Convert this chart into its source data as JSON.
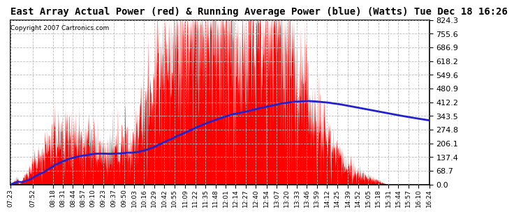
{
  "title": "East Array Actual Power (red) & Running Average Power (blue) (Watts) Tue Dec 18 16:26",
  "copyright": "Copyright 2007 Cartronics.com",
  "ylim": [
    0.0,
    824.3
  ],
  "yticks": [
    0.0,
    68.7,
    137.4,
    206.1,
    274.8,
    343.5,
    412.2,
    480.9,
    549.6,
    618.2,
    686.9,
    755.6,
    824.3
  ],
  "bar_color": "#FF0000",
  "avg_color": "#2222CC",
  "bg_color": "#FFFFFF",
  "plot_bg_color": "#FFFFFF",
  "grid_color": "#BBBBBB",
  "title_fontsize": 10,
  "x_tick_fontsize": 6.5,
  "y_tick_fontsize": 8,
  "tick_labels": [
    "07:23",
    "07:52",
    "08:18",
    "08:31",
    "08:44",
    "08:57",
    "09:10",
    "09:23",
    "09:37",
    "09:50",
    "10:03",
    "10:16",
    "10:29",
    "10:42",
    "10:55",
    "11:09",
    "11:22",
    "11:35",
    "11:48",
    "12:01",
    "12:14",
    "12:27",
    "12:40",
    "12:54",
    "13:07",
    "13:20",
    "13:33",
    "13:46",
    "13:59",
    "14:12",
    "14:25",
    "14:39",
    "14:52",
    "15:05",
    "15:18",
    "15:31",
    "15:44",
    "15:57",
    "16:10",
    "16:24"
  ]
}
